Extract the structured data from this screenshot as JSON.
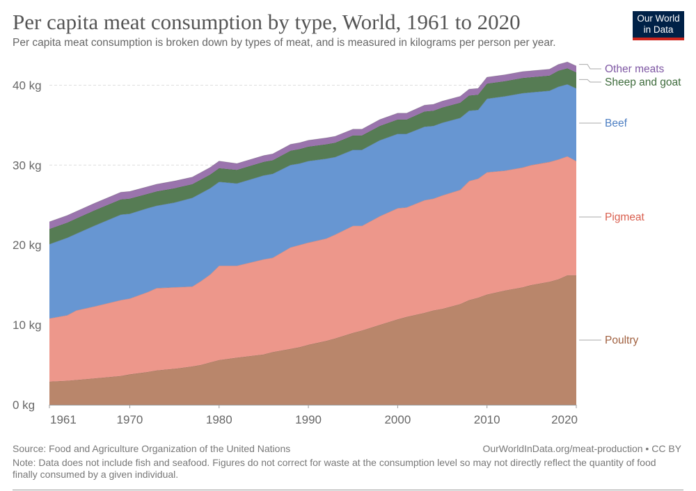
{
  "header": {
    "title": "Per capita meat consumption by type, World, 1961 to 2020",
    "subtitle": "Per capita meat consumption is broken down by types of meat, and is measured in kilograms per person per year."
  },
  "logo": {
    "line1": "Our World",
    "line2": "in Data",
    "bg_color": "#002147",
    "stripe_color": "#ce261e"
  },
  "footer": {
    "source": "Source: Food and Agriculture Organization of the United Nations",
    "credit": "OurWorldInData.org/meat-production • CC BY",
    "note": "Note: Data does not include fish and seafood. Figures do not correct for waste at the consumption level so may not directly reflect the quantity of food finally consumed by a given individual."
  },
  "chart_data": {
    "type": "area",
    "stacked": true,
    "title": "Per capita meat consumption by type, World, 1961 to 2020",
    "xlabel": "",
    "ylabel": "",
    "xlim": [
      1961,
      2020
    ],
    "ylim": [
      0,
      43
    ],
    "x_ticks": [
      "1961",
      "1970",
      "1980",
      "1990",
      "2000",
      "2010",
      "2020"
    ],
    "y_ticks": [
      "0 kg",
      "10 kg",
      "20 kg",
      "30 kg",
      "40 kg"
    ],
    "y_tick_values": [
      0,
      10,
      20,
      30,
      40
    ],
    "grid": "horizontal dashed",
    "x_key_years": [
      1961,
      1963,
      1964,
      1966,
      1969,
      1970,
      1972,
      1973,
      1975,
      1977,
      1978,
      1979,
      1980,
      1982,
      1985,
      1986,
      1988,
      1989,
      1990,
      1992,
      1993,
      1995,
      1996,
      1998,
      2000,
      2001,
      2003,
      2004,
      2005,
      2007,
      2008,
      2009,
      2010,
      2012,
      2014,
      2015,
      2017,
      2018,
      2019,
      2020
    ],
    "series": [
      {
        "name": "Poultry",
        "color": "#b9866b",
        "key_values": [
          2.9,
          3.0,
          3.1,
          3.3,
          3.6,
          3.8,
          4.1,
          4.3,
          4.5,
          4.8,
          5.0,
          5.3,
          5.6,
          5.9,
          6.3,
          6.6,
          7.0,
          7.2,
          7.5,
          8.0,
          8.3,
          9.0,
          9.3,
          10.0,
          10.7,
          11.0,
          11.5,
          11.8,
          12.0,
          12.6,
          13.1,
          13.4,
          13.8,
          14.3,
          14.7,
          15.0,
          15.4,
          15.7,
          16.2,
          16.2
        ]
      },
      {
        "name": "Pigmeat",
        "color": "#ed978b",
        "key_values": [
          7.9,
          8.2,
          8.7,
          9.0,
          9.5,
          9.5,
          10.0,
          10.3,
          10.2,
          10.0,
          10.5,
          11.0,
          11.8,
          11.5,
          11.9,
          11.8,
          12.7,
          12.8,
          12.8,
          12.8,
          13.0,
          13.4,
          13.1,
          13.6,
          13.9,
          13.7,
          14.1,
          14.0,
          14.2,
          14.3,
          14.9,
          14.9,
          15.3,
          15.0,
          15.0,
          15.0,
          15.0,
          15.0,
          14.9,
          14.3
        ]
      },
      {
        "name": "Beef",
        "color": "#6796d2",
        "key_values": [
          9.3,
          9.7,
          9.6,
          10.1,
          10.7,
          10.6,
          10.5,
          10.3,
          10.6,
          11.1,
          11.0,
          10.8,
          10.5,
          10.3,
          10.5,
          10.5,
          10.3,
          10.2,
          10.2,
          10.0,
          9.7,
          9.5,
          9.5,
          9.5,
          9.3,
          9.2,
          9.2,
          9.1,
          9.1,
          9.0,
          8.8,
          8.6,
          9.2,
          9.3,
          9.3,
          9.1,
          8.9,
          9.1,
          9.0,
          9.1
        ]
      },
      {
        "name": "Sheep and goat",
        "color": "#567c54",
        "key_values": [
          1.9,
          1.9,
          1.9,
          1.9,
          1.9,
          1.9,
          1.8,
          1.8,
          1.8,
          1.7,
          1.7,
          1.7,
          1.7,
          1.7,
          1.7,
          1.7,
          1.8,
          1.8,
          1.8,
          1.8,
          1.8,
          1.8,
          1.8,
          1.8,
          1.8,
          1.8,
          1.9,
          1.9,
          1.9,
          1.9,
          1.9,
          1.9,
          1.9,
          1.9,
          1.9,
          1.9,
          1.9,
          2.0,
          2.0,
          2.0
        ]
      },
      {
        "name": "Other meats",
        "color": "#9a74ad",
        "key_values": [
          0.9,
          0.9,
          0.9,
          0.9,
          0.9,
          0.9,
          0.9,
          0.9,
          0.9,
          0.9,
          0.9,
          0.9,
          0.9,
          0.8,
          0.8,
          0.8,
          0.8,
          0.8,
          0.8,
          0.8,
          0.8,
          0.8,
          0.8,
          0.8,
          0.8,
          0.8,
          0.8,
          0.8,
          0.8,
          0.8,
          0.8,
          0.8,
          0.8,
          0.8,
          0.8,
          0.8,
          0.8,
          0.8,
          0.8,
          0.8
        ]
      }
    ],
    "legend": [
      {
        "name": "Other meats",
        "text_color": "#7e57a3",
        "anchor_value": 42.6
      },
      {
        "name": "Sheep and goat",
        "text_color": "#3c6a3a",
        "anchor_value": 40.7
      },
      {
        "name": "Beef",
        "text_color": "#4c7ec2",
        "anchor_value": 35.2
      },
      {
        "name": "Pigmeat",
        "text_color": "#d95f4f",
        "anchor_value": 23.4
      },
      {
        "name": "Poultry",
        "text_color": "#a0603f",
        "anchor_value": 8.1
      }
    ]
  }
}
